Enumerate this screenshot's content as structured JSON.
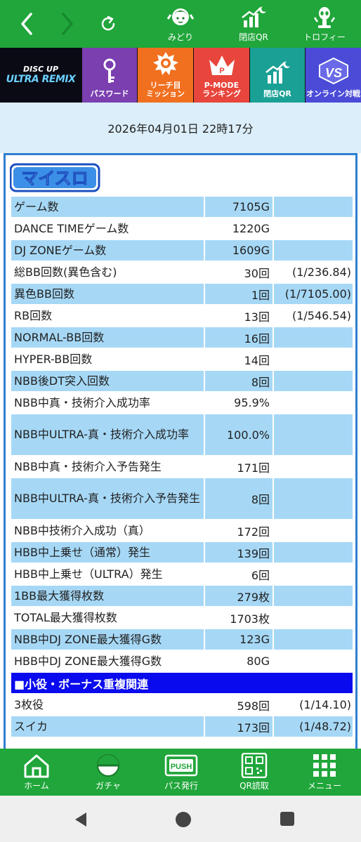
{
  "topbar": {
    "nav_back": "‹",
    "nav_forward": "›",
    "items": [
      {
        "label": "みどり",
        "icon": "character-icon"
      },
      {
        "label": "閉店QR",
        "icon": "graph-moon-icon"
      },
      {
        "label": "トロフィー",
        "icon": "trophy-alien-icon"
      }
    ]
  },
  "menu": {
    "logo_top": "DISC UP",
    "logo_bottom": "ULTRA REMIX",
    "items": [
      {
        "label": "パスワード",
        "color": "#7b3fb0",
        "icon": "key-icon"
      },
      {
        "label": "リーチ目\nミッション",
        "color": "#f07020",
        "icon": "mission-icon"
      },
      {
        "label": "P-MODE\nランキング",
        "color": "#e8453c",
        "icon": "crown-icon"
      },
      {
        "label": "閉店QR",
        "color": "#1aa095",
        "icon": "graph-moon-icon"
      },
      {
        "label": "オンライン対戦",
        "color": "#4b4bd8",
        "icon": "vs-icon"
      }
    ]
  },
  "date": "2026年04月01日 22時17分",
  "panel": {
    "logo_text": "マイスロ",
    "section_label": "■小役・ボーナス重複関連",
    "rows": [
      {
        "label": "ゲーム数",
        "value": "7105G",
        "ratio": "",
        "style": "blue",
        "tall": false
      },
      {
        "label": "DANCE TIMEゲーム数",
        "value": "1220G",
        "ratio": "",
        "style": "white",
        "tall": false
      },
      {
        "label": "DJ ZONEゲーム数",
        "value": "1609G",
        "ratio": "",
        "style": "blue",
        "tall": false
      },
      {
        "label": "総BB回数(異色含む)",
        "value": "30回",
        "ratio": "(1/236.84)",
        "style": "white",
        "tall": false
      },
      {
        "label": "異色BB回数",
        "value": "1回",
        "ratio": "(1/7105.00)",
        "style": "blue",
        "tall": false
      },
      {
        "label": "RB回数",
        "value": "13回",
        "ratio": "(1/546.54)",
        "style": "white",
        "tall": false
      },
      {
        "label": "NORMAL-BB回数",
        "value": "16回",
        "ratio": "",
        "style": "blue",
        "tall": false
      },
      {
        "label": "HYPER-BB回数",
        "value": "14回",
        "ratio": "",
        "style": "white",
        "tall": false
      },
      {
        "label": "NBB後DT突入回数",
        "value": "8回",
        "ratio": "",
        "style": "blue",
        "tall": false
      },
      {
        "label": "NBB中真・技術介入成功率",
        "value": "95.9%",
        "ratio": "",
        "style": "white",
        "tall": false
      },
      {
        "label": "NBB中ULTRA-真・技術介入成功率",
        "value": "100.0%",
        "ratio": "",
        "style": "blue",
        "tall": true
      },
      {
        "label": "NBB中真・技術介入予告発生",
        "value": "171回",
        "ratio": "",
        "style": "white",
        "tall": false
      },
      {
        "label": "NBB中ULTRA-真・技術介入予告発生",
        "value": "8回",
        "ratio": "",
        "style": "blue",
        "tall": true
      },
      {
        "label": "NBB中技術介入成功（真）",
        "value": "172回",
        "ratio": "",
        "style": "white",
        "tall": false
      },
      {
        "label": "HBB中上乗せ（通常）発生",
        "value": "139回",
        "ratio": "",
        "style": "blue",
        "tall": false
      },
      {
        "label": "HBB中上乗せ（ULTRA）発生",
        "value": "6回",
        "ratio": "",
        "style": "white",
        "tall": false
      },
      {
        "label": "1BB最大獲得枚数",
        "value": "279枚",
        "ratio": "",
        "style": "blue",
        "tall": false
      },
      {
        "label": "TOTAL最大獲得枚数",
        "value": "1703枚",
        "ratio": "",
        "style": "white",
        "tall": false
      },
      {
        "label": "NBB中DJ ZONE最大獲得G数",
        "value": "123G",
        "ratio": "",
        "style": "blue",
        "tall": false
      },
      {
        "label": "HBB中DJ ZONE最大獲得G数",
        "value": "80G",
        "ratio": "",
        "style": "white",
        "tall": false
      }
    ],
    "section_rows": [
      {
        "label": "3枚役",
        "value": "598回",
        "ratio": "(1/14.10)",
        "style": "white"
      },
      {
        "label": "スイカ",
        "value": "173回",
        "ratio": "(1/48.72)",
        "style": "blue"
      }
    ]
  },
  "bottomnav": [
    {
      "label": "ホーム",
      "icon": "home-icon"
    },
    {
      "label": "ガチャ",
      "icon": "gacha-icon"
    },
    {
      "label": "パス発行",
      "icon": "push-pass-icon"
    },
    {
      "label": "QR読取",
      "icon": "qr-icon"
    },
    {
      "label": "メニュー",
      "icon": "menu-grid-icon"
    }
  ],
  "colors": {
    "green": "#20a63a",
    "blue_row": "#a6d8f6",
    "panel_border": "#2e7fd0",
    "section": "#0a0aee",
    "date_band": "#dbeef9"
  }
}
